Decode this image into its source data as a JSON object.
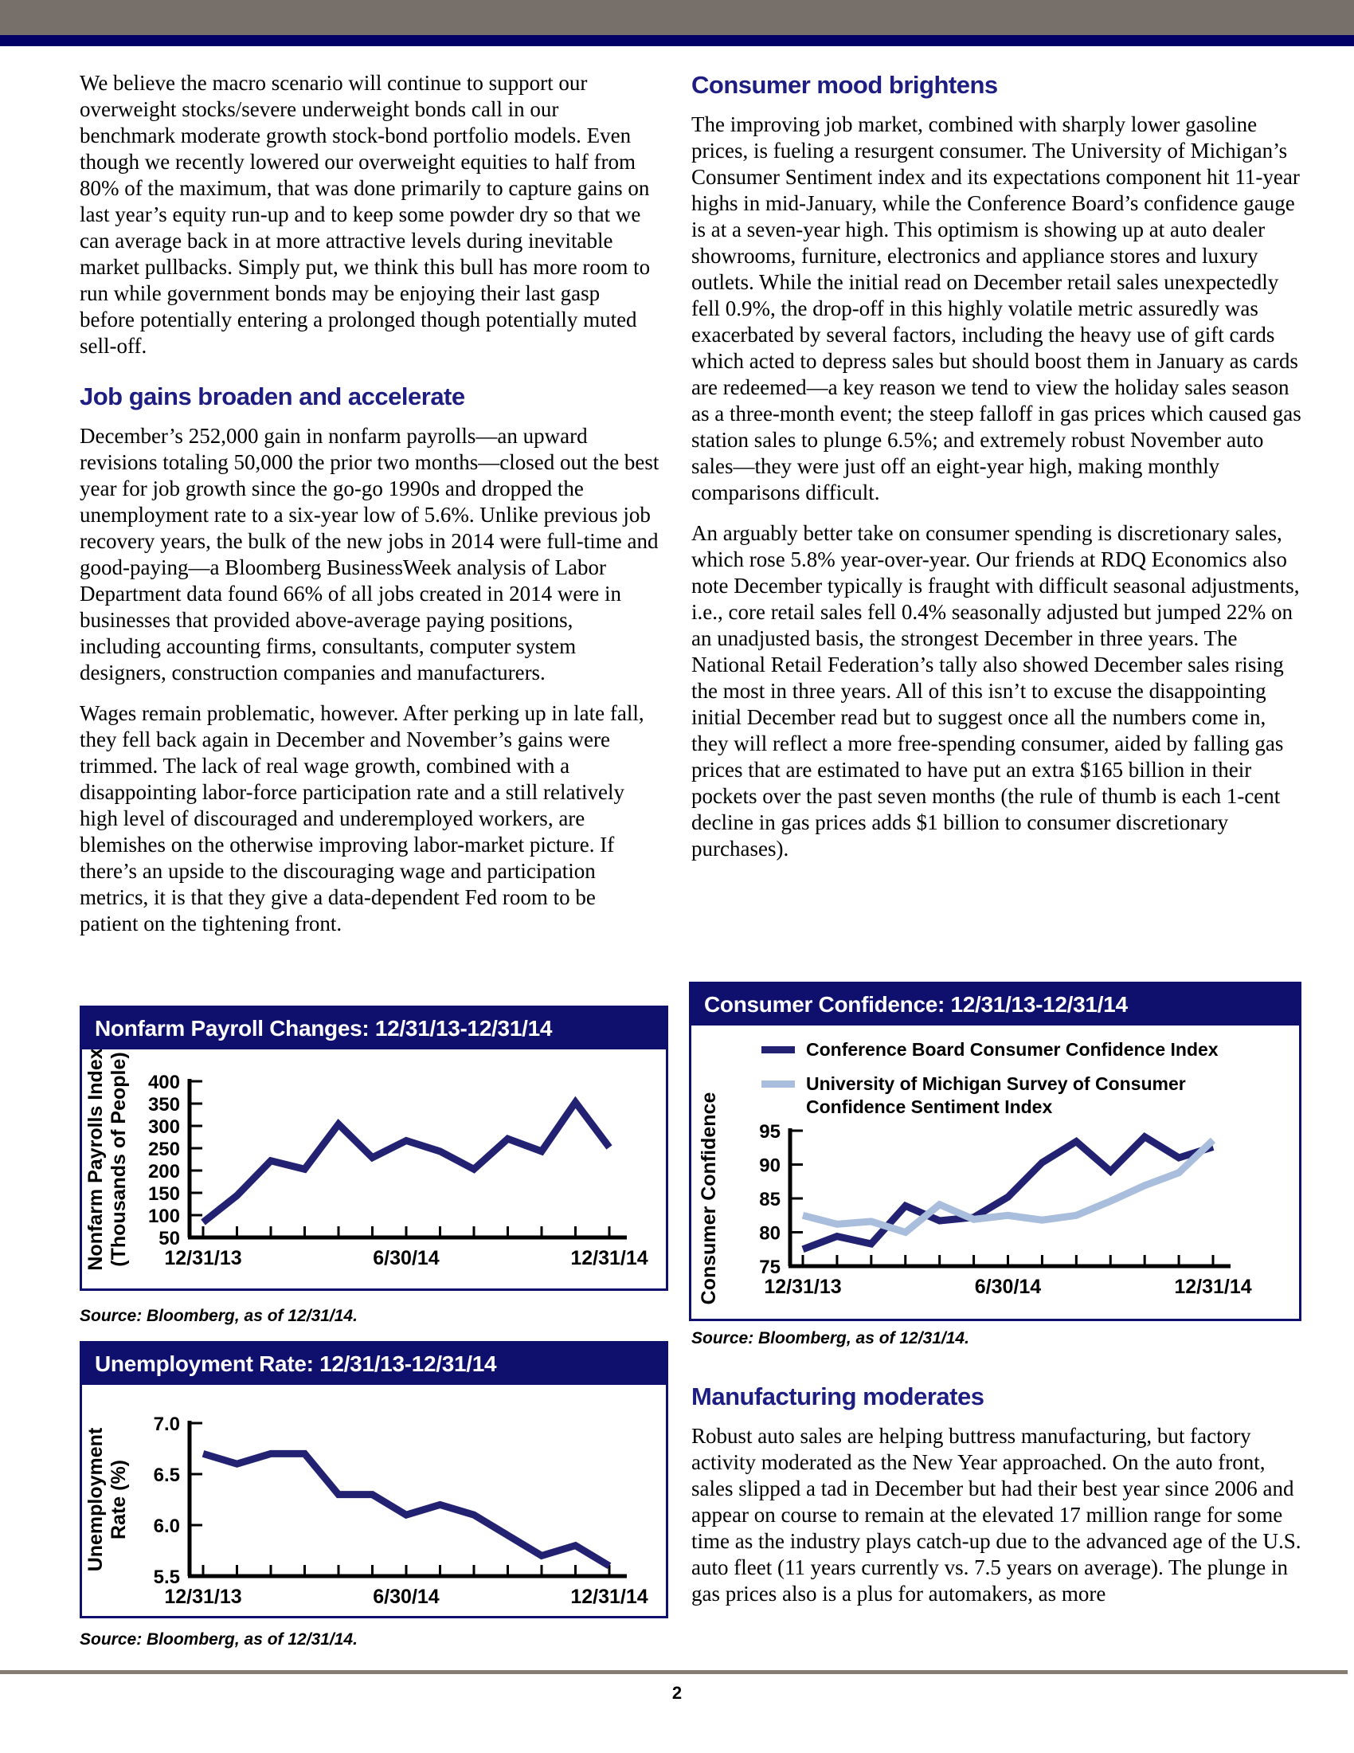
{
  "page": {
    "number": "2"
  },
  "colors": {
    "gray_bar": "#77706a",
    "navy_bar": "#000066",
    "heading": "#1d1d82",
    "chart_header_bg": "#0f0f6e",
    "chart_line_navy": "#232272",
    "chart_line_lightblue": "#a9bddc",
    "footer_rule": "#857c74"
  },
  "left": {
    "intro": "We believe the macro scenario will continue to support our overweight stocks/severe underweight bonds call in our benchmark moderate growth stock-bond portfolio models. Even though we recently lowered our overweight equities to half from 80% of the maximum, that was done primarily to capture gains on last year’s equity run-up and to keep some powder dry so that we can average back in at more attractive levels during inevitable market pullbacks. Simply put, we think this bull has more room to run while government bonds may be enjoying their last gasp before potentially entering a prolonged though potentially muted sell-off.",
    "jobs": {
      "heading": "Job gains broaden and accelerate",
      "p1": "December’s 252,000 gain in nonfarm payrolls—an upward revisions totaling 50,000 the prior two months—closed out the best year for job growth since the go-go 1990s and dropped the unemployment rate to a six-year low of 5.6%. Unlike previous job recovery years, the bulk of the new jobs in 2014 were full-time and good-paying—a Bloomberg BusinessWeek analysis of Labor Department data found 66% of all jobs created in 2014 were in businesses that provided above-average paying positions, including accounting firms, consultants, computer system designers, construction companies and manufacturers.",
      "p2": "Wages remain problematic, however. After perking up in late fall, they fell back again in December and November’s gains were trimmed. The lack of real wage growth, combined with a disappointing labor-force participation rate and a still relatively high level of discouraged and underemployed workers, are blemishes on the otherwise improving labor-market picture. If there’s an upside to the discouraging wage and participation metrics, it is that they give a data-dependent Fed room to be patient on the tightening front."
    }
  },
  "right": {
    "consumer": {
      "heading": "Consumer mood brightens",
      "p1": "The improving job market, combined with sharply lower gasoline prices, is fueling a resurgent consumer. The University of Michigan’s Consumer Sentiment index and its expectations component hit 11-year highs in mid-January, while the Conference Board’s confidence gauge is at a seven-year high. This optimism is showing up at auto dealer showrooms, furniture, electronics and appliance stores and luxury outlets. While the initial read on December retail sales unexpectedly fell 0.9%, the drop-off in this highly volatile metric assuredly was exacerbated by several factors, including the heavy use of gift cards which acted to depress sales but should boost them in January as cards are redeemed—a key reason we tend to view the holiday sales season as a three-month event; the steep falloff in gas prices which caused gas station sales to plunge 6.5%; and extremely robust November auto sales—they were just off an eight-year high, making monthly comparisons difficult.",
      "p2": "An arguably better take on consumer spending is discretionary sales, which rose 5.8% year-over-year. Our friends at RDQ Economics also note December typically is fraught with difficult seasonal adjustments, i.e., core retail sales fell 0.4% seasonally adjusted but jumped 22% on an unadjusted basis, the strongest December in three years. The National Retail Federation’s tally also showed December sales rising the most in three years. All of this isn’t to excuse the disappointing initial December read but to suggest once all the numbers come in, they will reflect a more free-spending consumer, aided by falling gas prices that are estimated to have put an extra $165 billion in their pockets over the past seven months (the rule of thumb is each 1-cent decline in gas prices adds $1 billion to consumer discretionary purchases)."
    },
    "manufacturing": {
      "heading": "Manufacturing moderates",
      "p1": "Robust auto sales are helping buttress manufacturing, but factory activity moderated as the New Year approached. On the auto front, sales slipped a tad in December but had their best year since 2006 and appear on course to remain at the elevated 17 million range for some time as the industry plays catch-up due to the advanced age of the U.S. auto fleet (11 years currently vs. 7.5 years on average). The plunge in gas prices also is a plus for automakers, as more"
    }
  },
  "chart_data": [
    {
      "type": "line",
      "title": "Nonfarm Payroll Changes: 12/31/13-12/31/14",
      "ylabel": "Nonfarm Payrolls Index (Thousands of People)",
      "ylabel_lines": [
        "Nonfarm Payrolls Index",
        "(Thousands of People)"
      ],
      "ylim": [
        50,
        400
      ],
      "yticks": [
        "400",
        "350",
        "300",
        "250",
        "200",
        "150",
        "100",
        "50"
      ],
      "x_tick_labels": [
        "12/31/13",
        "6/30/14",
        "12/31/14"
      ],
      "x_label_ticks": [
        0,
        6,
        12
      ],
      "series": [
        {
          "name": "Nonfarm payroll monthly change (thousands)",
          "color": "chart_line_navy",
          "values": [
            84,
            144,
            222,
            203,
            304,
            229,
            267,
            243,
            203,
            271,
            243,
            353,
            252
          ]
        }
      ],
      "source": "Source: Bloomberg, as of 12/31/14."
    },
    {
      "type": "line",
      "title": "Unemployment Rate: 12/31/13-12/31/14",
      "ylabel": "Unemployment Rate (%)",
      "ylabel_lines": [
        "Unemployment",
        "Rate (%)"
      ],
      "ylim": [
        5.5,
        7.0
      ],
      "yticks": [
        "7.0",
        "6.5",
        "6.0",
        "5.5"
      ],
      "x_tick_labels": [
        "12/31/13",
        "6/30/14",
        "12/31/14"
      ],
      "x_label_ticks": [
        0,
        6,
        12
      ],
      "series": [
        {
          "name": "Unemployment rate (%)",
          "color": "chart_line_navy",
          "values": [
            6.7,
            6.6,
            6.7,
            6.7,
            6.3,
            6.3,
            6.1,
            6.2,
            6.1,
            5.9,
            5.7,
            5.8,
            5.6
          ]
        }
      ],
      "source": "Source: Bloomberg, as of 12/31/14."
    },
    {
      "type": "line",
      "title": "Consumer Confidence: 12/31/13-12/31/14",
      "ylabel": "Consumer Confidence",
      "ylabel_lines": [
        "Consumer Confidence"
      ],
      "ylim": [
        75,
        95
      ],
      "yticks": [
        "95",
        "90",
        "85",
        "80",
        "75"
      ],
      "x_tick_labels": [
        "12/31/13",
        "6/30/14",
        "12/31/14"
      ],
      "x_label_ticks": [
        0,
        6,
        12
      ],
      "legend_position": "top-left inside",
      "series": [
        {
          "name": "Conference Board Consumer Confidence Index",
          "name_lines": [
            "Conference Board Consumer Confidence Index"
          ],
          "color": "chart_line_navy",
          "values": [
            77.5,
            79.4,
            78.3,
            83.9,
            81.7,
            82.2,
            85.2,
            90.3,
            93.4,
            89.0,
            94.1,
            91.0,
            92.6
          ]
        },
        {
          "name": "University of Michigan Survey of Consumer Confidence Sentiment Index",
          "name_lines": [
            "University of Michigan Survey of Consumer",
            "Confidence Sentiment Index"
          ],
          "color": "chart_line_lightblue",
          "values": [
            82.5,
            81.2,
            81.6,
            80.0,
            84.1,
            81.9,
            82.5,
            81.8,
            82.5,
            84.6,
            86.9,
            88.8,
            93.6
          ]
        }
      ],
      "source": "Source: Bloomberg, as of 12/31/14."
    }
  ]
}
